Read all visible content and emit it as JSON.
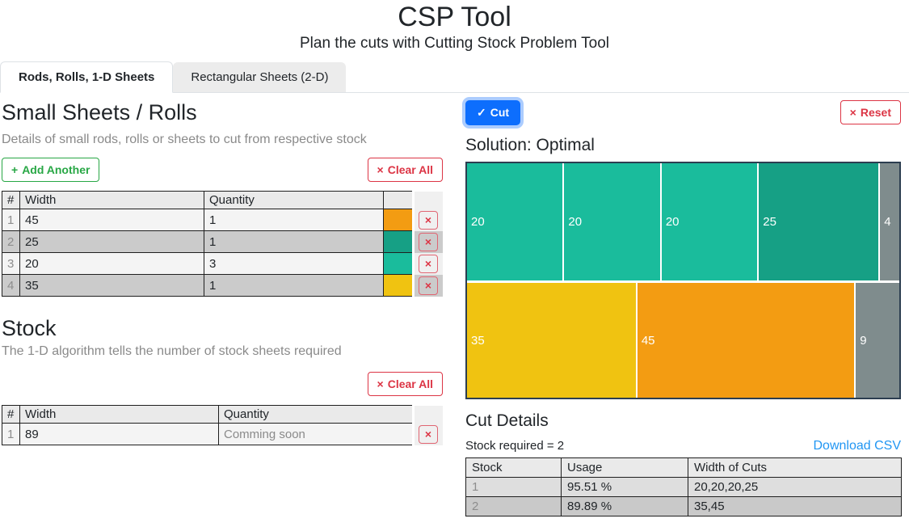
{
  "header": {
    "title": "CSP Tool",
    "subtitle": "Plan the cuts with Cutting Stock Problem Tool"
  },
  "tabs": [
    {
      "label": "Rods, Rolls, 1-D Sheets",
      "active": true
    },
    {
      "label": "Rectangular Sheets (2-D)",
      "active": false
    }
  ],
  "icons": {
    "close": "×",
    "check": "✓",
    "plus": "+"
  },
  "small_sheets": {
    "title": "Small Sheets / Rolls",
    "description": "Details of small rods, rolls or sheets to cut from respective stock",
    "add_button": "Add Another",
    "clear_button": "Clear All",
    "columns": [
      "#",
      "Width",
      "Quantity"
    ],
    "rows": [
      {
        "index": "1",
        "width": "45",
        "quantity": "1",
        "color": "#f39c12"
      },
      {
        "index": "2",
        "width": "25",
        "quantity": "1",
        "color": "#16a085"
      },
      {
        "index": "3",
        "width": "20",
        "quantity": "3",
        "color": "#1abc9c"
      },
      {
        "index": "4",
        "width": "35",
        "quantity": "1",
        "color": "#f0c311"
      }
    ]
  },
  "stock": {
    "title": "Stock",
    "description": "The 1-D algorithm tells the number of stock sheets required",
    "clear_button": "Clear All",
    "columns": [
      "#",
      "Width",
      "Quantity"
    ],
    "rows": [
      {
        "index": "1",
        "width": "89",
        "quantity_placeholder": "Comming soon"
      }
    ]
  },
  "solution": {
    "cut_button": "Cut",
    "reset_button": "Reset",
    "title": "Solution: Optimal"
  },
  "chart_data": {
    "type": "bar",
    "title": "Solution: Optimal",
    "orientation": "horizontal-stacked",
    "stock_width": 89,
    "legend_position": "none",
    "grid": false,
    "bars": [
      {
        "name": "stock-1",
        "segments": [
          {
            "value": 20,
            "color": "#1abc9c",
            "waste": false
          },
          {
            "value": 20,
            "color": "#1abc9c",
            "waste": false
          },
          {
            "value": 20,
            "color": "#1abc9c",
            "waste": false
          },
          {
            "value": 25,
            "color": "#16a085",
            "waste": false
          },
          {
            "value": 4,
            "color": "#7f8c8d",
            "waste": true
          }
        ]
      },
      {
        "name": "stock-2",
        "segments": [
          {
            "value": 35,
            "color": "#f0c311",
            "waste": false
          },
          {
            "value": 45,
            "color": "#f39c12",
            "waste": false
          },
          {
            "value": 9,
            "color": "#7f8c8d",
            "waste": true
          }
        ]
      }
    ]
  },
  "cut_details": {
    "title": "Cut Details",
    "stock_required": "Stock required = 2",
    "download_link": "Download CSV",
    "columns": [
      "Stock",
      "Usage",
      "Width of Cuts"
    ],
    "rows": [
      {
        "stock": "1",
        "usage": "95.51 %",
        "cuts": "20,20,20,25"
      },
      {
        "stock": "2",
        "usage": "89.89 %",
        "cuts": "35,45"
      }
    ]
  },
  "colors": {
    "primary": "#0d6efd",
    "success": "#28a745",
    "danger": "#dc3545",
    "link": "#2196f3",
    "chart_border": "#2c3e50",
    "waste": "#7f8c8d"
  }
}
